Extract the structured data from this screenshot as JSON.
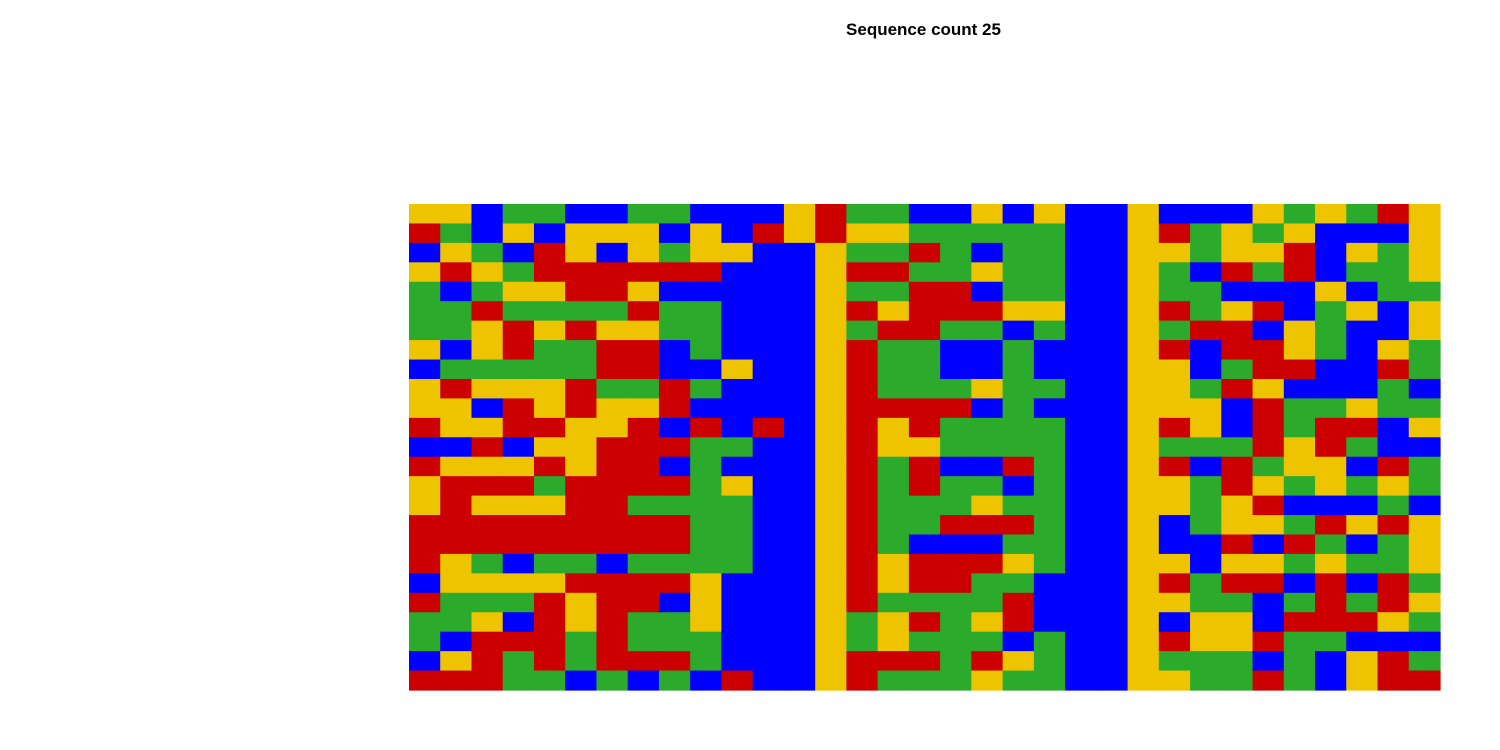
{
  "chart_data": {
    "type": "heatmap",
    "title": "Sequence count 25",
    "xlabel": "",
    "ylabel": "",
    "grid": false,
    "legend": "none",
    "n_rows": 25,
    "n_cols": 33,
    "palette": {
      "A": "#2BAA2B",
      "C": "#0000FF",
      "G": "#EEC400",
      "T": "#CC0000"
    },
    "rows": [
      "GGCAACCAACCCGTAACCGCGCCGCCCGAGATG",
      "TACGCGGGCGCTGTGGAAAAACCGTAGAGCCCG",
      "CGACTGCGAGGCCGAATACAACCGGAGGTCGAG",
      "GTGATTTTTTCCCGTTAAGAACCGACTATCAAG",
      "ACAGGTTGCCCCCGAATTCAACCGAACCCGCAA",
      "AATAAAATAACCCGTGTTTGGCCGTAGTCAGCG",
      "AAGTGTGGAACCCGATTAACACCGATTCGACCG",
      "GCGTAATTCACCCGTAACCACCCGTCTTGACGA",
      "CAAAAATTCCGCCGTAACCACCCGGCATTCCTA",
      "GTGGGTAATACCCGTAAAGAACCGGATGCCCAC",
      "GGCTGTGGTCCCCGTTTTCACCCGGGCTAAGAA",
      "TGGTTGGTCTCTCGTGTAAAACCGTGCTATTCG",
      "CCTCGGTTTAACCGTGGAAAACCGAAATGTACC",
      "TGGGTGTTCACCCGTATCCTACCGTCTAGGCTA",
      "GTTTATTTTAGCCGTATAACACCGGATGAGAGA",
      "GTGGGTTAAAACCGTAAAGAACCGGAGTCCCAC",
      "TTTTTTTTTAACCGTAATTTACCGCAGGATGTG",
      "TTTTTTTTTAACCGTACCCAACCGCCTCTACAG",
      "TGACAACAAAACCGTGTTTGACCGGCGGAGAAG",
      "CGGGGTTTTGCCCGTGTTAACCCGTATTCTCTA",
      "TAAATGTTCGCCCGTAAAATCCCGGAACATATG",
      "AAGCTGTAAGCCCGAGTAGTCCCGCGGCTTTGA",
      "ACTTTATAAACCCGAGAAACACCGTGGTAACCC",
      "CGTATATTTACCCGTTTATGACCGAAACACGTA",
      "TTTAACACACTCCGTAAAGAACCGGAATACGTT"
    ]
  }
}
